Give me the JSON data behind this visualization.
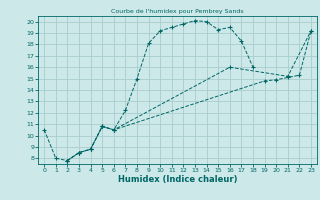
{
  "title": "Courbe de l'humidex pour Pembrey Sands",
  "xlabel": "Humidex (Indice chaleur)",
  "bg_color": "#cde8e8",
  "line_color": "#006666",
  "grid_color": "#aacccc",
  "xlim": [
    -0.5,
    23.5
  ],
  "ylim": [
    7.5,
    20.5
  ],
  "xticks": [
    0,
    1,
    2,
    3,
    4,
    5,
    6,
    7,
    8,
    9,
    10,
    11,
    12,
    13,
    14,
    15,
    16,
    17,
    18,
    19,
    20,
    21,
    22,
    23
  ],
  "yticks": [
    8,
    9,
    10,
    11,
    12,
    13,
    14,
    15,
    16,
    17,
    18,
    19,
    20
  ],
  "s1_x": [
    0,
    1,
    2,
    3,
    4,
    5,
    6,
    7,
    8,
    9,
    10,
    11,
    12,
    13,
    14,
    15,
    16,
    17,
    18
  ],
  "s1_y": [
    10.5,
    8.0,
    7.8,
    8.5,
    8.8,
    10.8,
    10.5,
    12.2,
    15.0,
    18.1,
    19.2,
    19.5,
    19.8,
    20.1,
    20.0,
    19.3,
    19.5,
    18.3,
    16.0
  ],
  "s2_x": [
    2,
    3,
    4,
    5,
    6,
    16,
    21,
    23
  ],
  "s2_y": [
    7.8,
    8.5,
    8.8,
    10.8,
    10.5,
    16.0,
    15.2,
    19.2
  ],
  "s3_x": [
    2,
    3,
    4,
    5,
    6,
    19,
    20,
    21,
    22,
    23
  ],
  "s3_y": [
    7.8,
    8.5,
    8.8,
    10.8,
    10.5,
    14.8,
    14.9,
    15.1,
    15.3,
    19.2
  ]
}
